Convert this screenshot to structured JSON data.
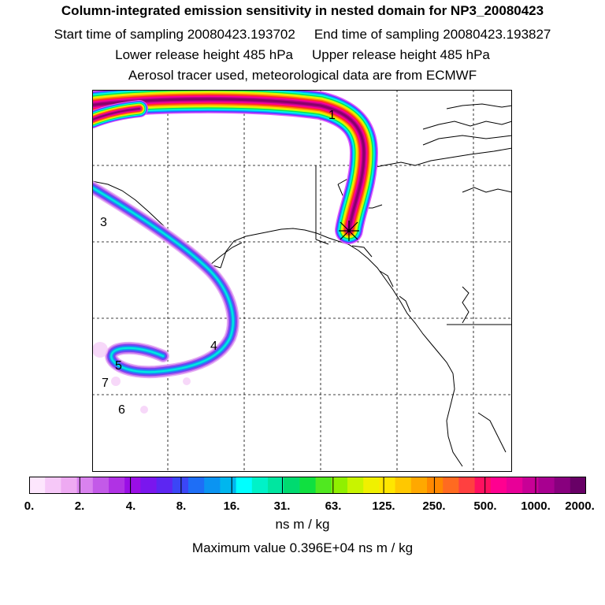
{
  "header": {
    "title": "Column-integrated emission sensitivity in nested domain for NP3_20080423",
    "start_label": "Start time of sampling 20080423.193702",
    "end_label": "End time of sampling 20080423.193827",
    "lower_label": "Lower release height  485 hPa",
    "upper_label": "Upper release height  485 hPa",
    "tracer_note": "Aerosol tracer used, meteorological data are from ECMWF"
  },
  "map": {
    "markers": [
      "1",
      "3",
      "4",
      "5",
      "7",
      "6"
    ],
    "plume_colors": [
      "#8a006a",
      "#c0008f",
      "#ff0098",
      "#ff2a2a",
      "#ff8000",
      "#ffd800",
      "#c8ff00",
      "#00e060",
      "#00ffe0",
      "#00a8ff",
      "#7030ff",
      "#e060ff"
    ]
  },
  "colorbar": {
    "colors": [
      "#fde6fd",
      "#f6c8f8",
      "#eeaaf2",
      "#d982ee",
      "#c35ae8",
      "#b032e4",
      "#9a0ee6",
      "#7a16ee",
      "#5d26f2",
      "#3b46f6",
      "#1e6ef6",
      "#0a94f2",
      "#00b6ee",
      "#00ffff",
      "#00f2c8",
      "#00e6a0",
      "#00da70",
      "#10e040",
      "#50e820",
      "#90f000",
      "#c8f400",
      "#f0f000",
      "#ffe600",
      "#ffc800",
      "#ffa800",
      "#ff8800",
      "#ff6a20",
      "#ff4040",
      "#ff1060",
      "#ff0090",
      "#e80098",
      "#c80096",
      "#a80090",
      "#88007e",
      "#680066"
    ],
    "ticks": [
      "0.",
      "2.",
      "4.",
      "8.",
      "16.",
      "31.",
      "63.",
      "125.",
      "250.",
      "500.",
      "1000.",
      "2000."
    ],
    "units": "ns m / kg"
  },
  "footer": {
    "max_value": "Maximum value  0.396E+04 ns m / kg"
  }
}
